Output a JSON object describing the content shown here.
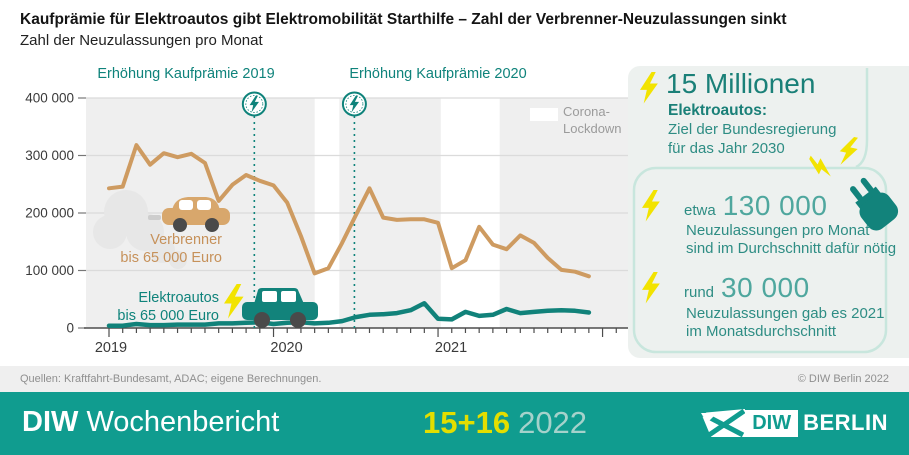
{
  "header": {
    "title": "Kaufprämie für Elektroautos gibt Elektromobilität Starthilfe – Zahl der Verbrenner-Neuzulassungen sinkt",
    "subtitle": "Zahl der Neuzulassungen pro Monat"
  },
  "colors": {
    "teal": "#0F837B",
    "orange": "#CE9B61",
    "yellow": "#F2E300",
    "issueyellow": "#E3DE00",
    "bar": "#109C8F",
    "chartbg": "#EFEFEF",
    "grid": "#DBDBDB",
    "mint": "#C8E6DD",
    "sidebg": "#EDF1EF",
    "lightteal": "#4FA79E",
    "wheel": "#4A4A4A",
    "cloud": "#E7E7E7"
  },
  "chart_data": {
    "type": "line",
    "title": "Zahl der Neuzulassungen pro Monat",
    "x_start": "2019-01",
    "x_freq": "monthly",
    "x_tick_labels": [
      "2019",
      "2020",
      "2021"
    ],
    "ylim": [
      0,
      400000
    ],
    "grid": true,
    "y_ticks": [
      {
        "value": 0,
        "label": "0"
      },
      {
        "value": 100000,
        "label": "100 000"
      },
      {
        "value": 200000,
        "label": "200 000"
      },
      {
        "value": 300000,
        "label": "300 000"
      },
      {
        "value": 400000,
        "label": "400 000"
      }
    ],
    "series": [
      {
        "name": "Verbrenner bis 65 000 Euro",
        "label_lines": [
          "Verbrenner",
          "bis 65 000 Euro"
        ],
        "color": "#CE9B61",
        "values": [
          243000,
          246000,
          318000,
          284000,
          304000,
          297000,
          303000,
          287000,
          221000,
          249000,
          266000,
          256000,
          248000,
          218000,
          160000,
          95000,
          104000,
          148000,
          196000,
          243000,
          192000,
          188000,
          189000,
          189000,
          183000,
          104000,
          118000,
          176000,
          145000,
          137000,
          161000,
          148000,
          122000,
          101000,
          98000,
          90000
        ]
      },
      {
        "name": "Elektroautos bis 65 000 Euro",
        "label_lines": [
          "Elektroautos",
          "bis 65 000 Euro"
        ],
        "color": "#11827A",
        "values": [
          4000,
          4000,
          7000,
          5000,
          5000,
          6000,
          6000,
          6000,
          8000,
          8000,
          9000,
          10000,
          7000,
          9000,
          10000,
          8000,
          9000,
          12000,
          19000,
          23000,
          24000,
          26000,
          31000,
          43000,
          16000,
          15000,
          28000,
          21000,
          23000,
          33000,
          26000,
          28000,
          30000,
          31000,
          30000,
          27000
        ]
      }
    ],
    "annotations": [
      {
        "name": "Erhöhung Kaufprämie 2019",
        "month": 10.6
      },
      {
        "name": "Erhöhung Kaufprämie 2020",
        "month": 17.9
      }
    ],
    "lockdown_bands_month_ranges": [
      [
        15.0,
        16.8
      ],
      [
        24.2,
        28.5
      ]
    ],
    "legend": [
      "Corona-",
      "Lockdown"
    ],
    "legend_label": "Corona-Lockdown"
  },
  "sidebar": {
    "goal_number": "15 Millionen",
    "goal_line1": "Elektroautos:",
    "goal_line2": "Ziel der Bundesregierung",
    "goal_line3": "für das Jahr 2030",
    "item1_prefix": "etwa",
    "item1_number": "130 000",
    "item1_line1": "Neuzulassungen pro Monat",
    "item1_line2": "sind im Durchschnitt dafür nötig",
    "item2_prefix": "rund",
    "item2_number": "30 000",
    "item2_line1": "Neuzulassungen gab es 2021",
    "item2_line2": "im Monatsdurchschnitt"
  },
  "footer": {
    "sources": "Quellen: Kraftfahrt-Bundesamt, ADAC; eigene Berechnungen.",
    "copyright": "© DIW Berlin 2022"
  },
  "bottombar": {
    "brand_bold": "DIW",
    "brand_rest": "Wochenbericht",
    "issue": "15+16",
    "year": "2022",
    "logo_diw": "DIW",
    "logo_berlin": "BERLIN"
  }
}
